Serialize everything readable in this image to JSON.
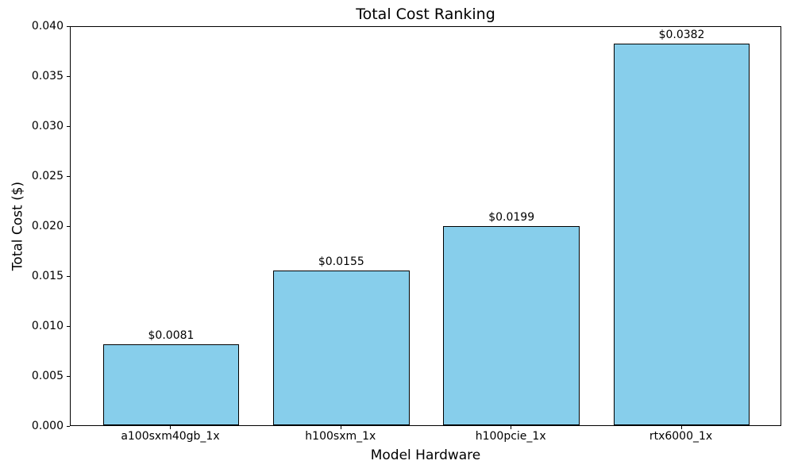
{
  "chart_data": {
    "type": "bar",
    "title": "Total Cost Ranking",
    "xlabel": "Model Hardware",
    "ylabel": "Total Cost ($)",
    "categories": [
      "a100sxm40gb_1x",
      "h100sxm_1x",
      "h100pcie_1x",
      "rtx6000_1x"
    ],
    "values": [
      0.0081,
      0.0155,
      0.0199,
      0.0382
    ],
    "bar_labels": [
      "$0.0081",
      "$0.0155",
      "$0.0199",
      "$0.0382"
    ],
    "ylim": [
      0.0,
      0.04
    ],
    "ytick_labels": [
      "0.000",
      "0.005",
      "0.010",
      "0.015",
      "0.020",
      "0.025",
      "0.030",
      "0.035",
      "0.040"
    ],
    "grid": false,
    "legend": null,
    "bar_color": "#87CEEB",
    "bar_edge_color": "#000000",
    "text_color": "#000000",
    "background_color": "#FFFFFF"
  }
}
